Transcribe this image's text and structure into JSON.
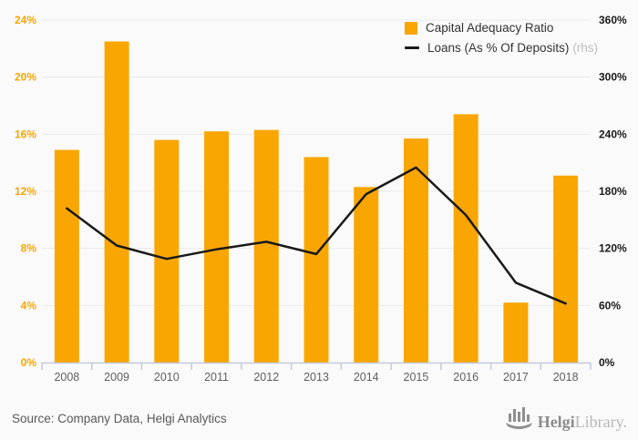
{
  "chart_data": {
    "type": "bar+line",
    "title": "",
    "categories": [
      "2008",
      "2009",
      "2010",
      "2011",
      "2012",
      "2013",
      "2014",
      "2015",
      "2016",
      "2017",
      "2018"
    ],
    "series": [
      {
        "name": "Capital Adequacy Ratio",
        "type": "bar",
        "axis": "left",
        "color": "#F9A602",
        "unit": "%",
        "values": [
          14.9,
          22.5,
          15.6,
          16.2,
          16.3,
          14.4,
          12.3,
          15.7,
          17.4,
          4.2,
          13.1
        ]
      },
      {
        "name": "Loans (As % Of Deposits)",
        "suffix": "(rhs)",
        "type": "line",
        "axis": "right",
        "color": "#1A1A1A",
        "unit": "%",
        "values": [
          162,
          123,
          109,
          119,
          127,
          114,
          177,
          205,
          155,
          84,
          62
        ]
      }
    ],
    "left_axis": {
      "min": 0,
      "max": 24,
      "step": 4,
      "labels": [
        "0%",
        "4%",
        "8%",
        "12%",
        "16%",
        "20%",
        "24%"
      ],
      "label_color": "#F9A602"
    },
    "right_axis": {
      "min": 0,
      "max": 360,
      "step": 60,
      "labels": [
        "0%",
        "60%",
        "120%",
        "180%",
        "240%",
        "300%",
        "360%"
      ],
      "label_color": "#1A1A1A"
    },
    "grid": true,
    "legend_position": "top-right"
  },
  "colors": {
    "background": "#FAFAFA",
    "gridline": "#E9E9E9",
    "axis_line": "#C3CADE",
    "x_label": "#606060",
    "bar": "#F9A602",
    "line": "#1A1A1A"
  },
  "footer": {
    "source": "Source: Company Data, Helgi Analytics",
    "logo_bold": "Helgi",
    "logo_light": "Library."
  }
}
